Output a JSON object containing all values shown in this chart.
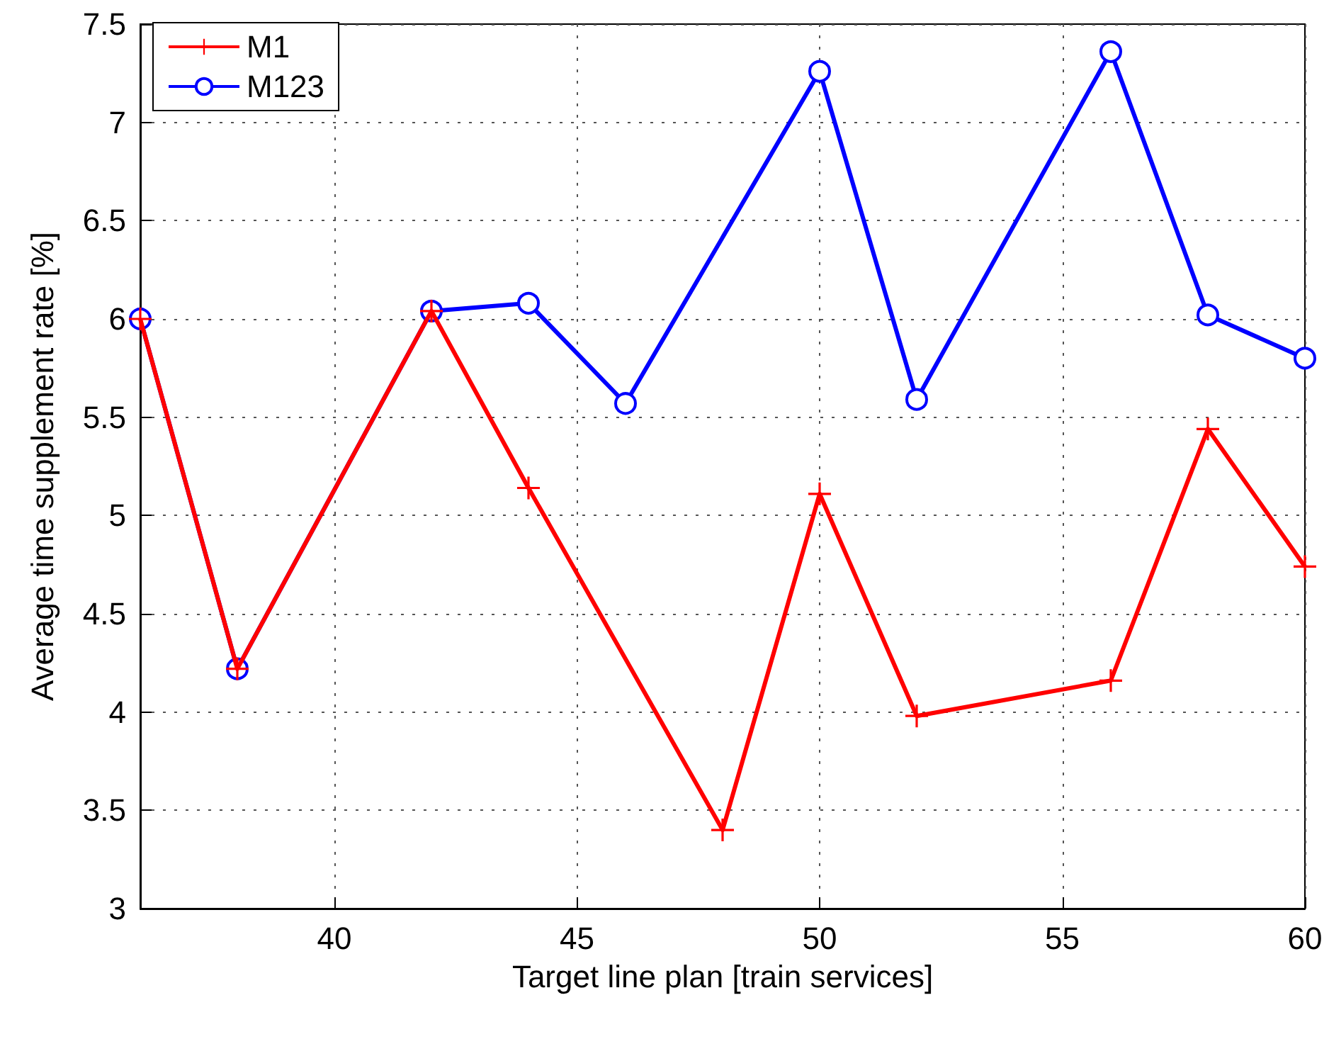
{
  "chart_data": {
    "type": "line",
    "xlabel": "Target line plan [train services]",
    "ylabel": "Average time supplement rate [%]",
    "xlim": [
      36,
      60
    ],
    "xticks": [
      40,
      45,
      50,
      55,
      60
    ],
    "ylim": [
      3,
      7.5
    ],
    "yticks": [
      3,
      3.5,
      4,
      4.5,
      5,
      5.5,
      6,
      6.5,
      7,
      7.5
    ],
    "grid": true,
    "legend": "top left",
    "line_style": "solid",
    "series": [
      {
        "name": "M1",
        "color": "#ff0000",
        "marker": "cross",
        "x": [
          36,
          38,
          42,
          44,
          48,
          50,
          52,
          56,
          58,
          60
        ],
        "values": [
          6.0,
          4.22,
          6.04,
          5.14,
          3.4,
          5.11,
          3.98,
          4.16,
          5.44,
          4.74
        ]
      },
      {
        "name": "M123",
        "color": "#0000ff",
        "marker": "circle",
        "x": [
          36,
          38,
          42,
          44,
          46,
          50,
          52,
          56,
          58,
          60
        ],
        "values": [
          6.0,
          4.22,
          6.04,
          6.08,
          5.57,
          7.26,
          5.59,
          7.36,
          6.02,
          5.8
        ]
      }
    ]
  }
}
